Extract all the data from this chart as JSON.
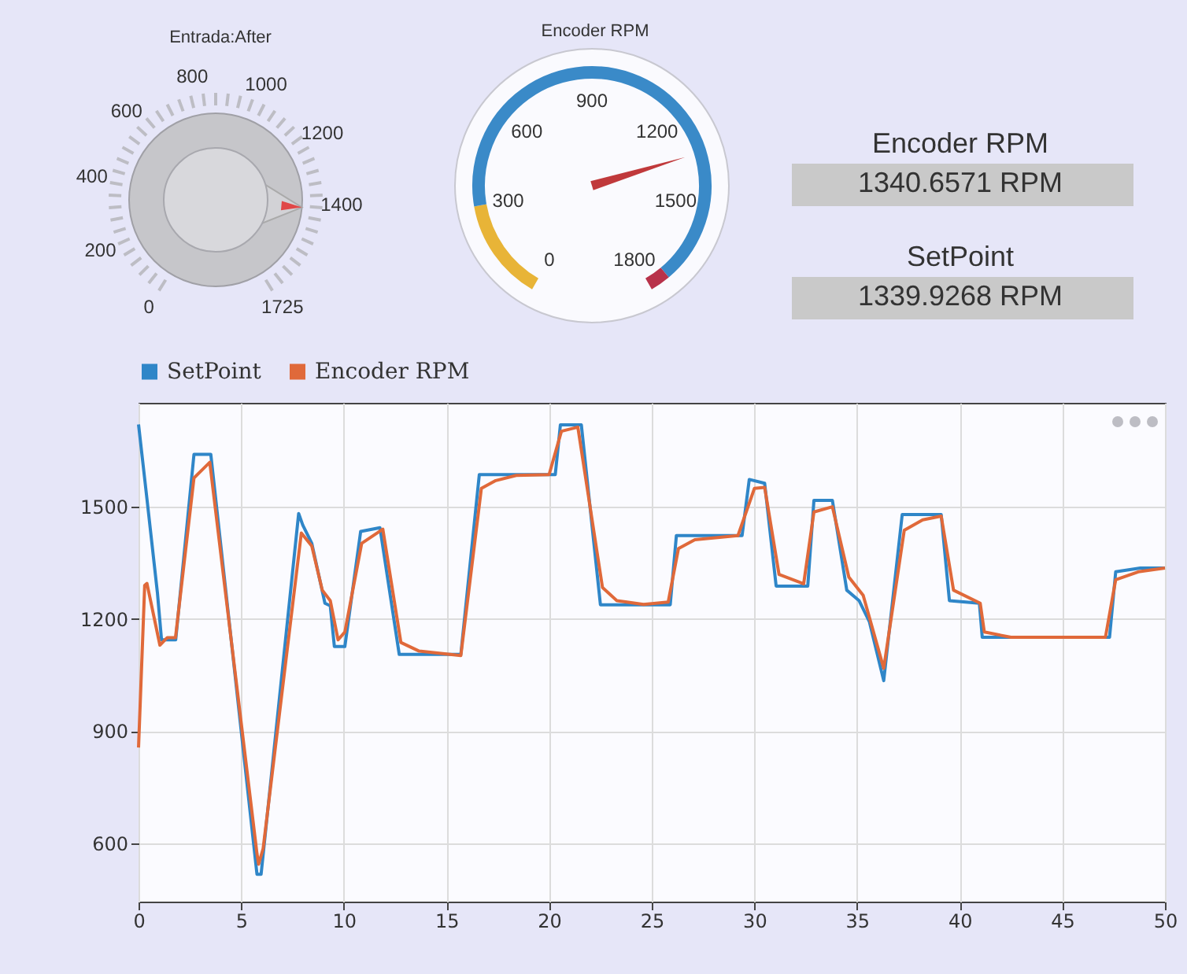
{
  "chart_data": [
    {
      "type": "other",
      "title": "Entrada:After",
      "annotations": [
        "0",
        "200",
        "400",
        "600",
        "800",
        "1000",
        "1200",
        "1400",
        "1725"
      ]
    },
    {
      "type": "other",
      "title": "Encoder RPM",
      "annotations": [
        "0",
        "300",
        "600",
        "900",
        "1200",
        "1500",
        "1800"
      ]
    },
    {
      "type": "other",
      "annotations": [
        "Encoder RPM",
        "1340.6571 RPM",
        "SetPoint",
        "1339.9268 RPM"
      ]
    },
    {
      "type": "line",
      "legend": "top left",
      "grid": true,
      "xlim": [
        0,
        50
      ],
      "xticks": [
        0,
        5,
        10,
        15,
        20,
        25,
        30,
        35,
        40,
        45,
        50
      ],
      "ylim": [
        444,
        1778
      ],
      "yticks": [
        600,
        900,
        1200,
        1500
      ],
      "series": [
        {
          "name": "SetPoint",
          "color": "#2f86c8",
          "x": [
            0,
            0.41,
            0.92,
            1.12,
            1.81,
            2.7,
            3.52,
            5.77,
            5.97,
            7.8,
            8.0,
            8.44,
            9.08,
            9.34,
            9.54,
            10.05,
            10.82,
            11.76,
            12.7,
            15.7,
            16.6,
            20.3,
            20.55,
            21.57,
            22.5,
            25.9,
            26.2,
            29.4,
            29.75,
            30.5,
            31.06,
            32.6,
            32.9,
            33.8,
            34.5,
            35.1,
            35.6,
            36.3,
            37.2,
            39.1,
            39.5,
            40.96,
            41.1,
            47.3,
            47.6,
            48.8,
            50
          ],
          "values": [
            1720,
            1521,
            1270,
            1144,
            1144,
            1640,
            1640,
            517,
            517,
            1482,
            1451,
            1402,
            1242,
            1235,
            1126,
            1126,
            1434,
            1444,
            1105,
            1105,
            1586,
            1586,
            1719,
            1719,
            1238,
            1238,
            1423,
            1423,
            1573,
            1563,
            1288,
            1288,
            1517,
            1517,
            1277,
            1249,
            1193,
            1035,
            1479,
            1479,
            1249,
            1242,
            1151,
            1151,
            1326,
            1336,
            1336
          ]
        },
        {
          "name": "Encoder RPM",
          "color": "#e0693a",
          "x": [
            0,
            0.3,
            0.41,
            1.04,
            1.4,
            1.8,
            2.7,
            3.47,
            5.77,
            5.85,
            6.07,
            7.93,
            8.44,
            8.95,
            9.34,
            9.72,
            10.05,
            10.87,
            11.9,
            12.78,
            13.67,
            15.7,
            16.7,
            17.4,
            18.4,
            20.0,
            20.6,
            21.4,
            22.6,
            23.3,
            24.6,
            25.8,
            26.3,
            27.1,
            29.2,
            30.0,
            30.5,
            31.2,
            32.4,
            32.9,
            33.8,
            34.6,
            35.3,
            36.3,
            37.3,
            38.2,
            39.1,
            39.7,
            41.0,
            41.2,
            42.5,
            47.1,
            47.6,
            48.7,
            50
          ],
          "values": [
            856,
            1290,
            1295,
            1130,
            1150,
            1150,
            1577,
            1619,
            572,
            544,
            586,
            1430,
            1395,
            1277,
            1249,
            1144,
            1165,
            1402,
            1440,
            1137,
            1114,
            1102,
            1549,
            1570,
            1584,
            1586,
            1702,
            1713,
            1284,
            1249,
            1239,
            1245,
            1388,
            1412,
            1423,
            1549,
            1552,
            1319,
            1294,
            1486,
            1500,
            1312,
            1263,
            1068,
            1437,
            1465,
            1475,
            1277,
            1242,
            1165,
            1151,
            1151,
            1305,
            1326,
            1336
          ]
        }
      ]
    }
  ]
}
